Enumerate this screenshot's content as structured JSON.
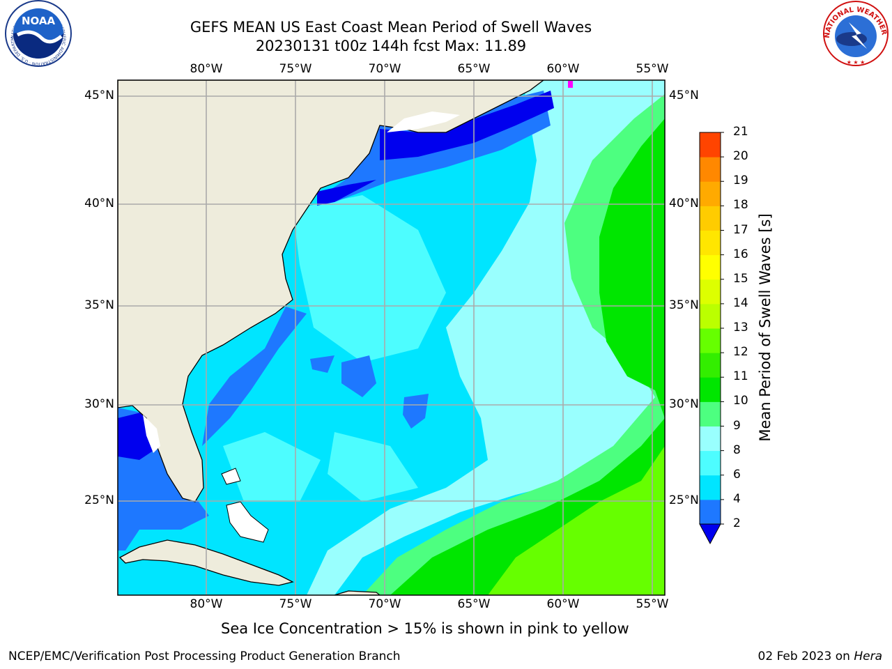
{
  "title": {
    "line1": "GEFS MEAN US East Coast Mean Period of Swell Waves",
    "line2": "20230131 t00z 144h fcst   Max: 11.89"
  },
  "logos": {
    "noaa": "NOAA",
    "noaa_ring": "NATIONAL OCEANIC AND ATMOSPHERIC ADMINISTRATION · U.S. DEPARTMENT OF COMMERCE",
    "nws_ring": "NATIONAL WEATHER SERVICE"
  },
  "map": {
    "lon_labels": [
      "80°W",
      "75°W",
      "70°W",
      "65°W",
      "60°W",
      "55°W"
    ],
    "lat_labels": [
      "45°N",
      "40°N",
      "35°N",
      "30°N",
      "25°N"
    ],
    "colors": {
      "land": "#eeecdc",
      "deep_blue": "#0000ee",
      "blue": "#1e78ff",
      "cyan": "#00e5ff",
      "light_cyan": "#4dfdff",
      "pale_cyan": "#99fffe",
      "light_green": "#4dff80",
      "green": "#00e600",
      "yellow_green": "#66ff00",
      "grid": "#aaaaaa",
      "ice": "#ff00ff"
    }
  },
  "colorbar": {
    "label": "Mean Period of Swell Waves [s]",
    "ticks": [
      "2",
      "4",
      "6",
      "8",
      "9",
      "10",
      "11",
      "12",
      "13",
      "14",
      "15",
      "16",
      "17",
      "18",
      "19",
      "20",
      "21"
    ],
    "colors": [
      "#1e78ff",
      "#00e5ff",
      "#4dfdff",
      "#99fffe",
      "#4dff80",
      "#00e600",
      "#33ee00",
      "#66ff00",
      "#bbff00",
      "#ddff00",
      "#ffff00",
      "#ffe600",
      "#ffcc00",
      "#ffaa00",
      "#ff8800",
      "#ff4400",
      "#ff0000"
    ],
    "extend_color": "#0000ee"
  },
  "footer": {
    "ice_note": "Sea Ice Concentration > 15% is shown in pink to yellow",
    "left": "NCEP/EMC/Verification Post Processing Product Generation Branch",
    "right_date": "02 Feb 2023 on ",
    "right_host": "Hera"
  }
}
